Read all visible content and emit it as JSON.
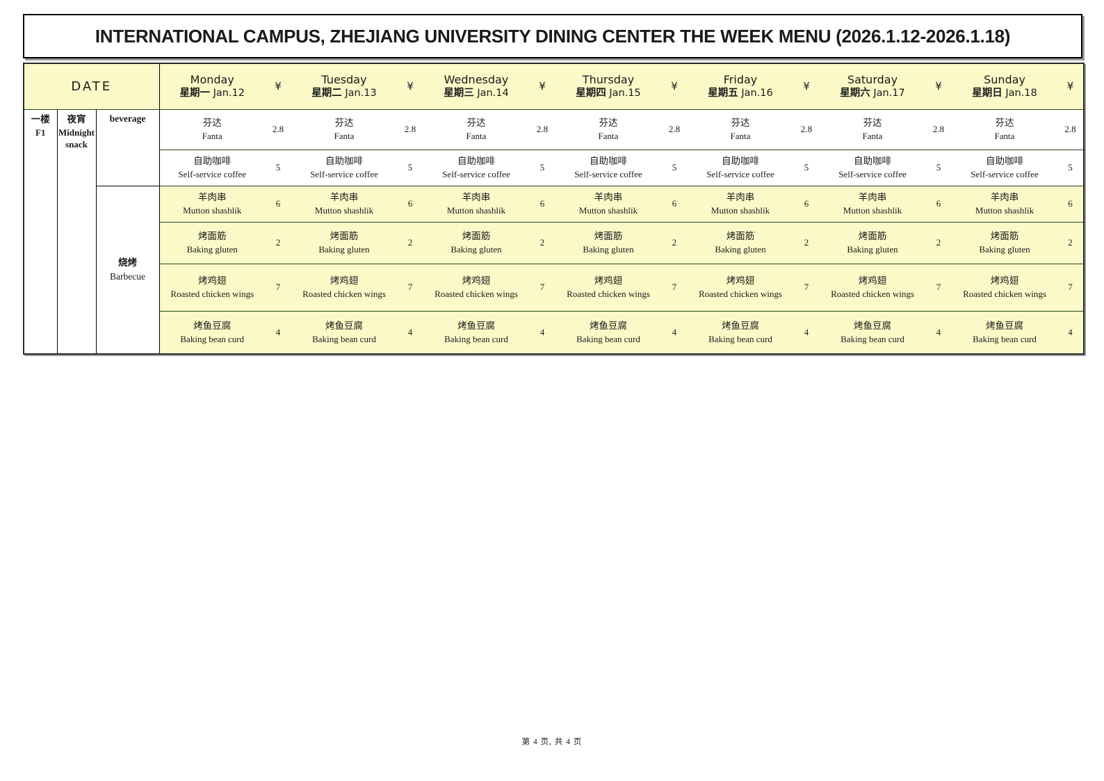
{
  "page": {
    "title": "INTERNATIONAL CAMPUS, ZHEJIANG UNIVERSITY DINING CENTER THE WEEK MENU (2026.1.12-2026.1.18)",
    "footer": "第 4 页, 共 4 页"
  },
  "header": {
    "date_label": "DATE",
    "currency": "¥",
    "days": [
      {
        "en": "Monday",
        "zh": "星期一",
        "date": "Jan.12"
      },
      {
        "en": "Tuesday",
        "zh": "星期二",
        "date": "Jan.13"
      },
      {
        "en": "Wednesday",
        "zh": "星期三",
        "date": "Jan.14"
      },
      {
        "en": "Thursday",
        "zh": "星期四",
        "date": "Jan.15"
      },
      {
        "en": "Friday",
        "zh": "星期五",
        "date": "Jan.16"
      },
      {
        "en": "Saturday",
        "zh": "星期六",
        "date": "Jan.17"
      },
      {
        "en": "Sunday",
        "zh": "星期日",
        "date": "Jan.18"
      }
    ]
  },
  "labels": {
    "floor_zh": "一楼",
    "floor_en": "F1",
    "meal_zh": "夜宵",
    "meal_en": "Midnight snack",
    "category_beverage_en": "beverage",
    "category_barbecue_zh": "烧烤",
    "category_barbecue_en": "Barbecue"
  },
  "menu": {
    "items": [
      {
        "zh": "芬达",
        "en": "Fanta",
        "category": "beverage",
        "prices": [
          "2.8",
          "2.8",
          "2.8",
          "2.8",
          "2.8",
          "2.8",
          "2.8"
        ]
      },
      {
        "zh": "自助咖啡",
        "en": "Self-service coffee",
        "category": "beverage",
        "prices": [
          "5",
          "5",
          "5",
          "5",
          "5",
          "5",
          "5"
        ]
      },
      {
        "zh": "羊肉串",
        "en": "Mutton shashlik",
        "category": "barbecue",
        "prices": [
          "6",
          "6",
          "6",
          "6",
          "6",
          "6",
          "6"
        ]
      },
      {
        "zh": "烤面筋",
        "en": "Baking gluten",
        "category": "barbecue",
        "prices": [
          "2",
          "2",
          "2",
          "2",
          "2",
          "2",
          "2"
        ]
      },
      {
        "zh": "烤鸡翅",
        "en": "Roasted chicken wings",
        "category": "barbecue",
        "prices": [
          "7",
          "7",
          "7",
          "7",
          "7",
          "7",
          "7"
        ]
      },
      {
        "zh": "烤鱼豆腐",
        "en": "Baking bean curd",
        "category": "barbecue",
        "prices": [
          "4",
          "4",
          "4",
          "4",
          "4",
          "4",
          "4"
        ]
      }
    ]
  },
  "colors": {
    "header_bg": "#fbf9c8",
    "barbecue_row_bg": "#fbf9c8",
    "beverage_row_bg": "#ffffff",
    "grid_line_green": "#26461d",
    "border_black": "#000000"
  }
}
